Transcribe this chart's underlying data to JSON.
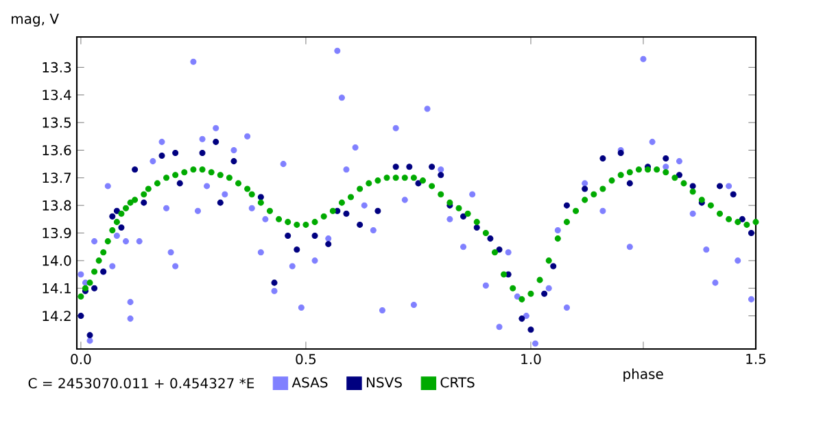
{
  "chart_data": {
    "type": "scatter",
    "xlabel": "phase",
    "ylabel": "mag, V",
    "annotations": [
      "C = 2453070.011 + 0.454327 *E"
    ],
    "xlim": [
      -0.009,
      1.5
    ],
    "ylim": [
      14.32,
      13.19
    ],
    "xticks": [
      {
        "value": 0,
        "label": "0.0"
      },
      {
        "value": 0.5,
        "label": "0.5"
      },
      {
        "value": 1,
        "label": "1.0"
      },
      {
        "value": 1.25,
        "label": null
      },
      {
        "value": 1.5,
        "label": "1.5"
      }
    ],
    "yticks": [
      13.3,
      13.4,
      13.5,
      13.6,
      13.7,
      13.8,
      13.9,
      {
        "value": 14,
        "label": "14.0"
      },
      14.1,
      14.2
    ],
    "grid": false,
    "legend": "bottom",
    "series": [
      {
        "name": "ASAS",
        "color": "#8080ff",
        "x": [
          0.0,
          0.01,
          0.02,
          0.03,
          0.05,
          0.06,
          0.07,
          0.08,
          0.1,
          0.11,
          0.11,
          0.13,
          0.15,
          0.16,
          0.18,
          0.19,
          0.2,
          0.21,
          0.25,
          0.26,
          0.27,
          0.28,
          0.3,
          0.32,
          0.34,
          0.37,
          0.38,
          0.4,
          0.41,
          0.43,
          0.45,
          0.47,
          0.49,
          0.52,
          0.55,
          0.57,
          0.58,
          0.59,
          0.61,
          0.63,
          0.65,
          0.67,
          0.7,
          0.72,
          0.74,
          0.77,
          0.8,
          0.82,
          0.85,
          0.87,
          0.9,
          0.93,
          0.95,
          0.97,
          0.99,
          1.01,
          1.04,
          1.06,
          1.08,
          1.12,
          1.16,
          1.2,
          1.22,
          1.25,
          1.27,
          1.3,
          1.33,
          1.36,
          1.39,
          1.41,
          1.44,
          1.46,
          1.49
        ],
        "values": [
          14.05,
          14.08,
          14.29,
          13.93,
          14.04,
          13.73,
          14.02,
          13.91,
          13.93,
          14.15,
          14.21,
          13.93,
          null,
          13.64,
          13.57,
          13.81,
          13.97,
          14.02,
          13.28,
          13.82,
          13.56,
          13.73,
          13.52,
          13.76,
          13.6,
          13.55,
          13.81,
          13.97,
          13.85,
          14.11,
          13.65,
          14.02,
          14.17,
          14.0,
          13.92,
          13.24,
          13.41,
          13.67,
          13.59,
          13.8,
          13.89,
          14.18,
          13.52,
          13.78,
          14.16,
          13.45,
          13.67,
          13.85,
          13.95,
          13.76,
          14.09,
          14.24,
          13.97,
          14.13,
          14.2,
          14.3,
          14.1,
          13.89,
          14.17,
          13.72,
          13.82,
          13.6,
          13.95,
          13.27,
          13.57,
          13.66,
          13.64,
          13.83,
          13.96,
          14.08,
          13.73,
          14.0,
          14.14
        ]
      },
      {
        "name": "NSVS",
        "color": "#000080",
        "x": [
          0.0,
          0.01,
          0.02,
          0.03,
          0.05,
          0.06,
          0.07,
          0.08,
          0.09,
          0.12,
          0.14,
          0.18,
          0.21,
          0.22,
          0.27,
          0.3,
          0.31,
          0.34,
          0.35,
          0.37,
          0.4,
          0.43,
          0.46,
          0.48,
          0.52,
          0.55,
          0.57,
          0.59,
          0.62,
          0.66,
          0.7,
          0.73,
          0.75,
          0.78,
          0.8,
          0.82,
          0.85,
          0.88,
          0.91,
          0.93,
          0.95,
          0.98,
          1.0,
          1.03,
          1.05,
          1.08,
          1.12,
          1.16,
          1.2,
          1.22,
          1.26,
          1.3,
          1.33,
          1.36,
          1.38,
          1.42,
          1.45,
          1.47,
          1.49
        ],
        "values": [
          14.2,
          14.11,
          14.27,
          14.1,
          14.04,
          null,
          13.84,
          13.82,
          13.88,
          13.67,
          13.79,
          13.62,
          13.61,
          13.72,
          13.61,
          13.57,
          13.79,
          13.64,
          null,
          null,
          13.77,
          14.08,
          13.91,
          13.96,
          13.91,
          13.94,
          13.82,
          13.83,
          13.87,
          13.82,
          13.66,
          13.66,
          13.72,
          13.66,
          13.69,
          13.8,
          13.84,
          13.88,
          13.92,
          13.96,
          14.05,
          14.21,
          14.25,
          14.12,
          14.02,
          13.8,
          13.74,
          13.63,
          13.61,
          13.72,
          13.66,
          13.63,
          13.69,
          13.73,
          13.79,
          13.73,
          13.76,
          13.85,
          13.9
        ]
      },
      {
        "name": "CRTS",
        "color": "#00aa00",
        "x": [
          0.0,
          0.01,
          0.02,
          0.03,
          0.04,
          0.05,
          0.06,
          0.07,
          0.08,
          0.09,
          0.1,
          0.11,
          0.12,
          0.14,
          0.15,
          0.17,
          0.19,
          0.21,
          0.23,
          0.25,
          0.27,
          0.29,
          0.31,
          0.33,
          0.35,
          0.37,
          0.38,
          0.4,
          0.42,
          0.44,
          0.46,
          0.48,
          0.5,
          0.52,
          0.54,
          0.56,
          0.58,
          0.6,
          0.62,
          0.64,
          0.66,
          0.68,
          0.7,
          0.72,
          0.74,
          0.76,
          0.78,
          0.8,
          0.82,
          0.84,
          0.86,
          0.88,
          0.9,
          0.92,
          0.94,
          0.96,
          0.98,
          1.0,
          1.02,
          1.04,
          1.06,
          1.08,
          1.1,
          1.12,
          1.14,
          1.16,
          1.18,
          1.2,
          1.22,
          1.24,
          1.26,
          1.28,
          1.3,
          1.32,
          1.34,
          1.36,
          1.38,
          1.4,
          1.42,
          1.44,
          1.46,
          1.48,
          1.5
        ],
        "values": [
          14.13,
          14.1,
          14.08,
          14.04,
          14.0,
          13.97,
          13.93,
          13.89,
          13.86,
          13.83,
          13.81,
          13.79,
          13.78,
          13.76,
          13.74,
          13.72,
          13.7,
          13.69,
          13.68,
          13.67,
          13.67,
          13.68,
          13.69,
          13.7,
          13.72,
          13.74,
          13.76,
          13.79,
          13.82,
          13.85,
          13.86,
          13.87,
          13.87,
          13.86,
          13.84,
          13.82,
          13.79,
          13.77,
          13.74,
          13.72,
          13.71,
          13.7,
          13.7,
          13.7,
          13.7,
          13.71,
          13.73,
          13.76,
          13.79,
          13.81,
          13.83,
          13.86,
          13.9,
          13.97,
          14.05,
          14.1,
          14.14,
          14.12,
          14.07,
          14.0,
          13.92,
          13.86,
          13.82,
          13.78,
          13.76,
          13.74,
          13.71,
          13.69,
          13.68,
          13.67,
          13.67,
          13.67,
          13.68,
          13.7,
          13.72,
          13.75,
          13.78,
          13.8,
          13.83,
          13.85,
          13.86,
          13.87,
          13.86
        ]
      }
    ]
  }
}
